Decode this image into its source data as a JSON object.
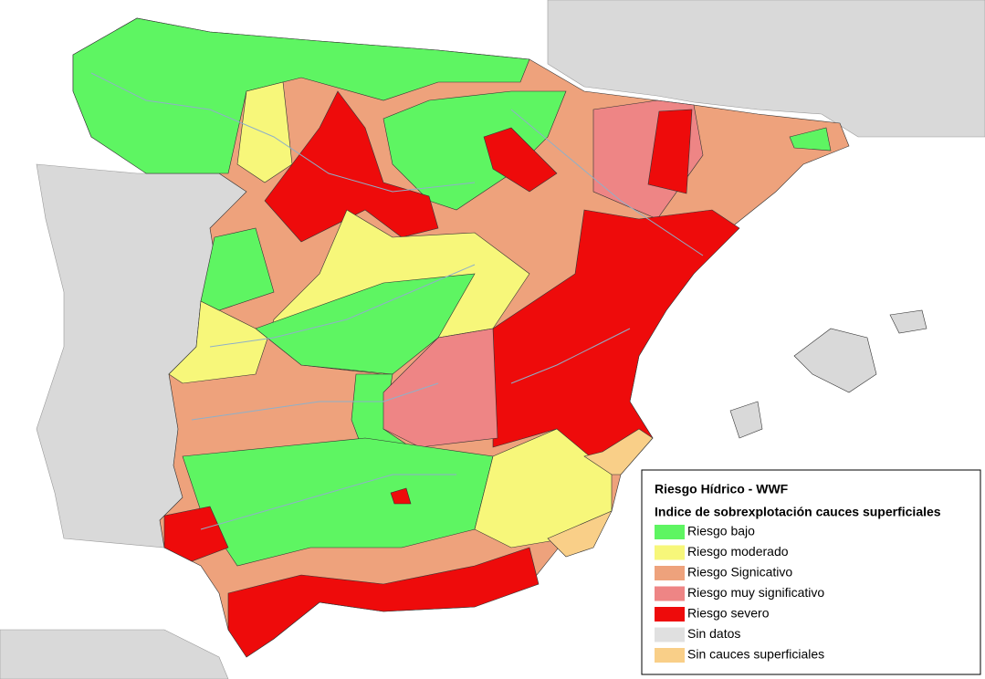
{
  "legend": {
    "title": "Riesgo Hídrico - WWF",
    "subtitle": "Indice de sobrexplotación cauces superficiales",
    "items": [
      {
        "label": "Riesgo bajo",
        "color": "#5ef562"
      },
      {
        "label": "Riesgo moderado",
        "color": "#f7f77a"
      },
      {
        "label": "Riesgo Signicativo",
        "color": "#eea27c"
      },
      {
        "label": "Riesgo muy significativo",
        "color": "#ee8585"
      },
      {
        "label": "Riesgo severo",
        "color": "#ee0b0b"
      },
      {
        "label": "Sin datos",
        "color": "#e0e0e0"
      },
      {
        "label": "Sin cauces superficiales",
        "color": "#f9cf88"
      }
    ]
  }
}
